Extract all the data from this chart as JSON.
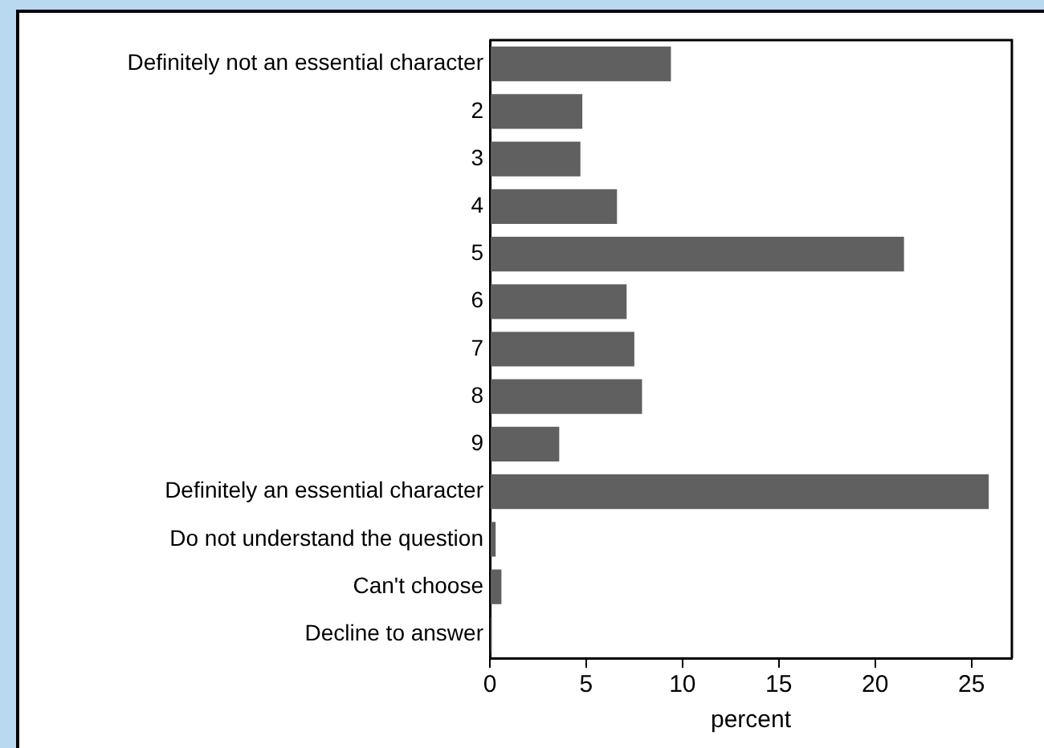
{
  "chart_data": {
    "type": "bar",
    "orientation": "horizontal",
    "xlabel": "percent",
    "categories": [
      "Definitely not an essential character",
      "2",
      "3",
      "4",
      "5",
      "6",
      "7",
      "8",
      "9",
      "Definitely an essential character",
      "Do not understand the question",
      "Can't choose",
      "Decline to answer"
    ],
    "values": [
      9.4,
      4.8,
      4.7,
      6.6,
      21.5,
      7.1,
      7.5,
      7.9,
      3.6,
      25.9,
      0.3,
      0.6,
      0.1
    ],
    "color": "#606060",
    "xlim": [
      0,
      27.1
    ],
    "xticks": [
      0,
      5,
      10,
      15,
      20,
      25
    ],
    "grid": false,
    "legend": false
  }
}
